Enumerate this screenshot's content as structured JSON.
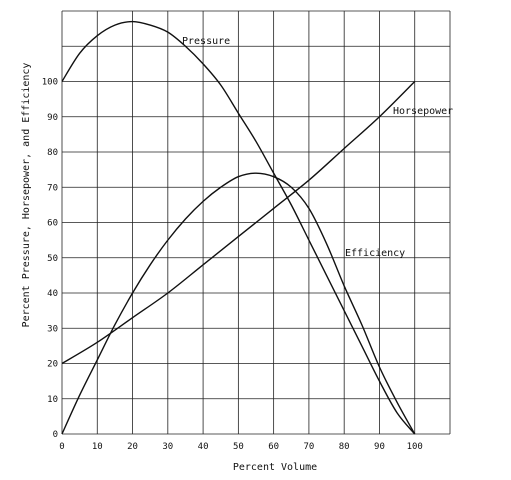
{
  "chart_data": {
    "type": "line",
    "xlabel": "Percent Volume",
    "ylabel": "Percent Pressure, Horsepower, and Efficiency",
    "xlim": [
      0,
      110
    ],
    "ylim": [
      0,
      120
    ],
    "x_ticks": [
      0,
      10,
      20,
      30,
      40,
      50,
      60,
      70,
      80,
      90,
      100
    ],
    "y_ticks": [
      0,
      10,
      20,
      30,
      40,
      50,
      60,
      70,
      80,
      90,
      100
    ],
    "grid": true,
    "series": [
      {
        "name": "Pressure",
        "x": [
          0,
          5,
          10,
          15,
          20,
          25,
          30,
          35,
          40,
          45,
          50,
          55,
          60,
          65,
          70,
          75,
          80,
          85,
          90,
          95,
          100
        ],
        "y": [
          100,
          108,
          113,
          116,
          117,
          116,
          114,
          110,
          105,
          99,
          91,
          83,
          74,
          65,
          55,
          45,
          35,
          25,
          15,
          6,
          0
        ]
      },
      {
        "name": "Horsepower",
        "x": [
          0,
          10,
          20,
          30,
          40,
          50,
          60,
          70,
          80,
          90,
          100
        ],
        "y": [
          20,
          26,
          33,
          40,
          48,
          56,
          64,
          72,
          81,
          90,
          100
        ]
      },
      {
        "name": "Efficiency",
        "x": [
          0,
          5,
          10,
          15,
          20,
          25,
          30,
          35,
          40,
          45,
          50,
          55,
          60,
          65,
          70,
          75,
          80,
          85,
          90,
          95,
          100
        ],
        "y": [
          0,
          11,
          21,
          31,
          40,
          48,
          55,
          61,
          66,
          70,
          73,
          74,
          73,
          70,
          64,
          54,
          42,
          31,
          19,
          9,
          0
        ]
      }
    ]
  }
}
